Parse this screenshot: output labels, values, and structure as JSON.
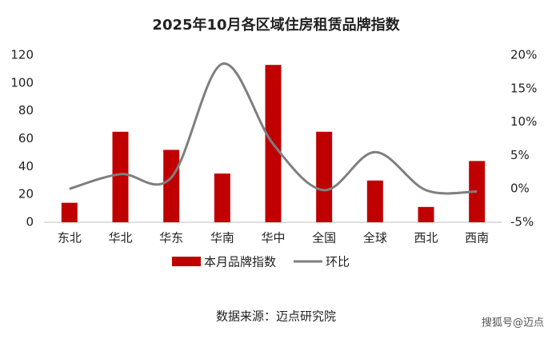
{
  "chart_data": {
    "type": "bar-line",
    "title": "2025年10月各区域住房租赁品牌指数",
    "categories": [
      "东北",
      "华北",
      "华东",
      "华南",
      "华中",
      "全国",
      "全球",
      "西北",
      "西南"
    ],
    "series": [
      {
        "name": "本月品牌指数",
        "type": "bar",
        "color": "#c00000",
        "values": [
          14,
          65,
          52,
          35,
          113,
          65,
          30,
          11,
          44
        ]
      },
      {
        "name": "环比",
        "type": "line",
        "axis": "y2",
        "color": "#7f7f7f",
        "values": [
          0,
          2.2,
          1.7,
          18.7,
          6.7,
          -0.2,
          5.5,
          -0.2,
          -0.4
        ]
      }
    ],
    "ylim": [
      0,
      120
    ],
    "yticks": [
      0,
      20,
      40,
      60,
      80,
      100,
      120
    ],
    "y2lim": [
      -5,
      20
    ],
    "y2ticks": [
      {
        "value": -5,
        "label": "-5%"
      },
      {
        "value": 0,
        "label": "0%"
      },
      {
        "value": 5,
        "label": "5%"
      },
      {
        "value": 10,
        "label": "10%"
      },
      {
        "value": 15,
        "label": "15%"
      },
      {
        "value": 20,
        "label": "20%"
      }
    ],
    "source": "数据来源：迈点研究院",
    "watermark": "搜狐号@迈点"
  }
}
